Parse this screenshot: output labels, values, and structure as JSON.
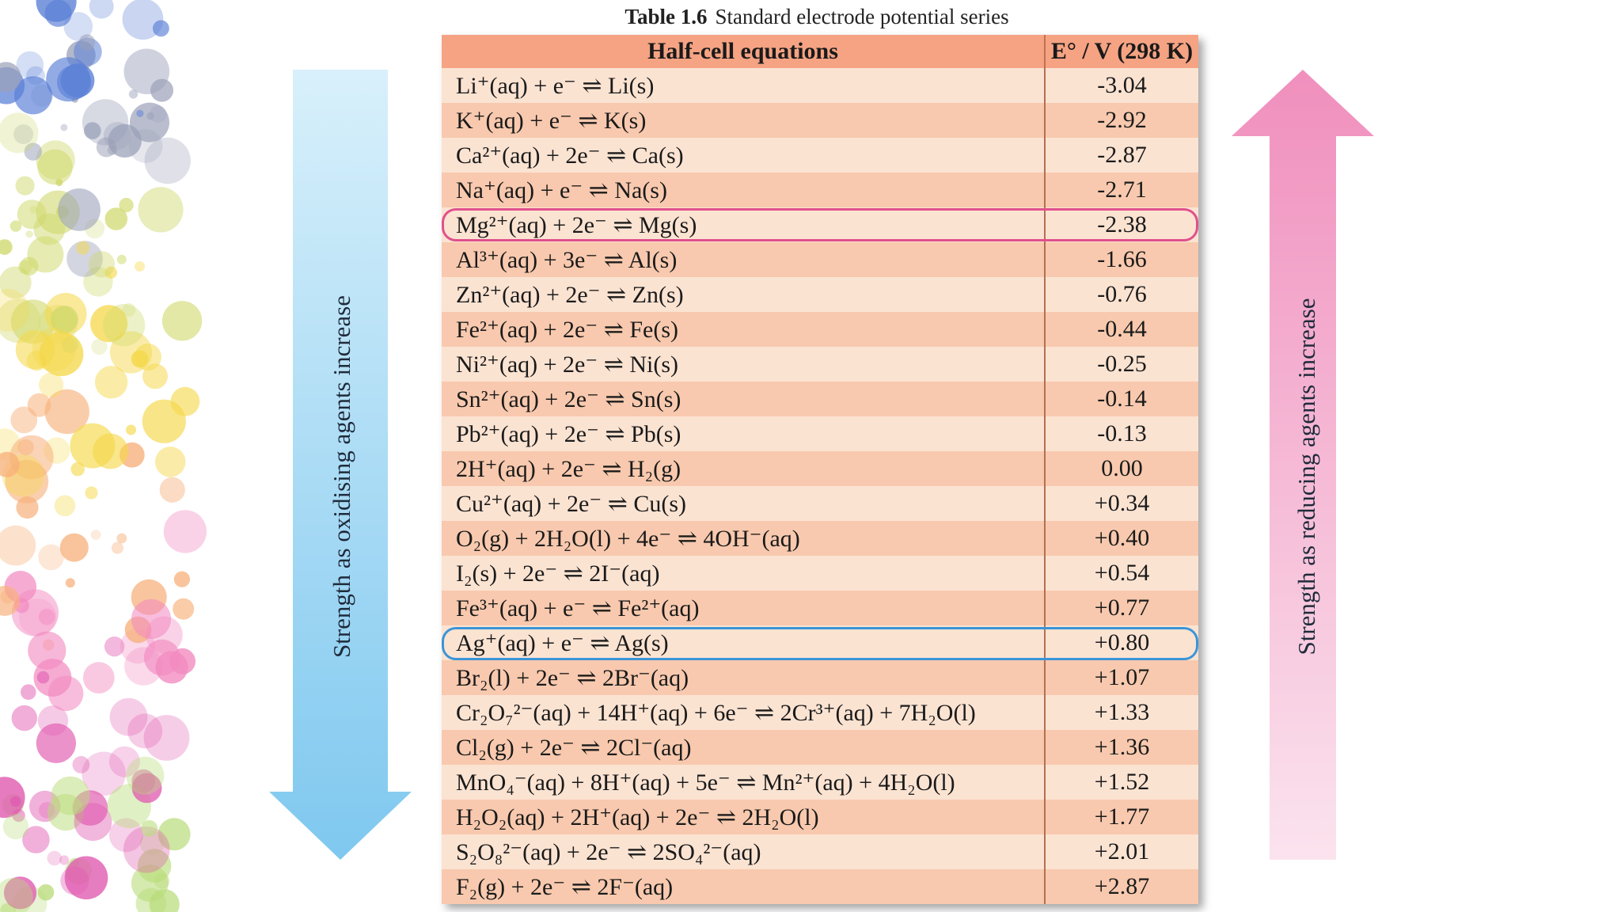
{
  "caption": {
    "label": "Table 1.6",
    "title": "Standard electrode potential series"
  },
  "table": {
    "headers": [
      "Half-cell equations",
      "E° / V (298 K)"
    ],
    "rows": [
      {
        "eq": "Li⁺(aq) + e⁻  ⇌  Li(s)",
        "e0": "-3.04"
      },
      {
        "eq": "K⁺(aq) + e⁻  ⇌  K(s)",
        "e0": "-2.92"
      },
      {
        "eq": "Ca²⁺(aq) + 2e⁻  ⇌  Ca(s)",
        "e0": "-2.87"
      },
      {
        "eq": "Na⁺(aq) + e⁻  ⇌  Na(s)",
        "e0": "-2.71"
      },
      {
        "eq": "Mg²⁺(aq) + 2e⁻  ⇌  Mg(s)",
        "e0": "-2.38"
      },
      {
        "eq": "Al³⁺(aq) + 3e⁻  ⇌  Al(s)",
        "e0": "-1.66"
      },
      {
        "eq": "Zn²⁺(aq) + 2e⁻  ⇌  Zn(s)",
        "e0": "-0.76"
      },
      {
        "eq": "Fe²⁺(aq) + 2e⁻  ⇌  Fe(s)",
        "e0": "-0.44"
      },
      {
        "eq": "Ni²⁺(aq) + 2e⁻  ⇌  Ni(s)",
        "e0": "-0.25"
      },
      {
        "eq": "Sn²⁺(aq) + 2e⁻  ⇌  Sn(s)",
        "e0": "-0.14"
      },
      {
        "eq": "Pb²⁺(aq) + 2e⁻  ⇌  Pb(s)",
        "e0": "-0.13"
      },
      {
        "eq": "2H⁺(aq) + 2e⁻  ⇌  H₂(g)",
        "e0": "0.00"
      },
      {
        "eq": "Cu²⁺(aq) + 2e⁻  ⇌  Cu(s)",
        "e0": "+0.34"
      },
      {
        "eq": "O₂(g) + 2H₂O(l) + 4e⁻  ⇌  4OH⁻(aq)",
        "e0": "+0.40"
      },
      {
        "eq": "I₂(s) + 2e⁻  ⇌  2I⁻(aq)",
        "e0": "+0.54"
      },
      {
        "eq": "Fe³⁺(aq) + e⁻  ⇌  Fe²⁺(aq)",
        "e0": "+0.77"
      },
      {
        "eq": "Ag⁺(aq) + e⁻  ⇌  Ag(s)",
        "e0": "+0.80"
      },
      {
        "eq": "Br₂(l) + 2e⁻  ⇌  2Br⁻(aq)",
        "e0": "+1.07"
      },
      {
        "eq": "Cr₂O₇²⁻(aq) + 14H⁺(aq) + 6e⁻  ⇌  2Cr³⁺(aq) + 7H₂O(l)",
        "e0": "+1.33"
      },
      {
        "eq": "Cl₂(g) + 2e⁻  ⇌  2Cl⁻(aq)",
        "e0": "+1.36"
      },
      {
        "eq": "MnO₄⁻(aq) + 8H⁺(aq) + 5e⁻  ⇌  Mn²⁺(aq) + 4H₂O(l)",
        "e0": "+1.52"
      },
      {
        "eq": "H₂O₂(aq) + 2H⁺(aq) + 2e⁻  ⇌  2H₂O(l)",
        "e0": "+1.77"
      },
      {
        "eq": "S₂O₈²⁻(aq) + 2e⁻  ⇌  2SO₄²⁻(aq)",
        "e0": "+2.01"
      },
      {
        "eq": "F₂(g) + 2e⁻  ⇌  2F⁻(aq)",
        "e0": "+2.87"
      }
    ],
    "highlighted_rows": [
      {
        "row": 4,
        "color": "#e0508c"
      },
      {
        "row": 16,
        "color": "#3b95d8"
      }
    ]
  },
  "arrows": {
    "left": {
      "label": "Strength as oxidising agents increase",
      "direction": "down",
      "color": "#8fd3f0"
    },
    "right": {
      "label": "Strength as reducing agents increase",
      "direction": "up",
      "color": "#f2a7c8"
    }
  },
  "decoration": {
    "left_strip": "bokeh-circles",
    "palette": [
      "#5a7fd6",
      "#9aa0b8",
      "#cfd86a",
      "#f5d84a",
      "#f7b07a",
      "#f28ac0",
      "#e05ab0",
      "#b9dc7a"
    ]
  }
}
